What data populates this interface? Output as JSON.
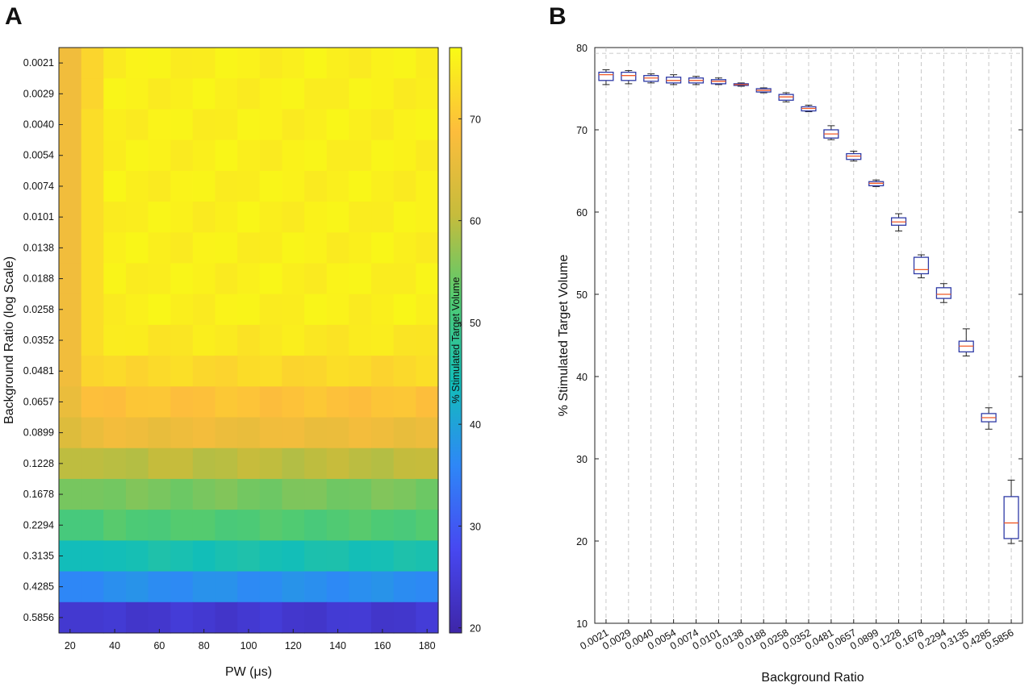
{
  "chart_data": [
    {
      "panel": "A",
      "type": "heatmap",
      "xlabel": "PW (μs)",
      "ylabel": "Background Ratio (log Scale)",
      "colorbar_label": "% Stimulated Target Volume",
      "x": [
        20,
        30,
        40,
        50,
        60,
        70,
        80,
        90,
        100,
        110,
        120,
        130,
        140,
        150,
        160,
        170,
        180
      ],
      "x_ticks": [
        "20",
        "40",
        "60",
        "80",
        "100",
        "120",
        "140",
        "160",
        "180"
      ],
      "x_range": [
        15,
        185
      ],
      "y_categories": [
        "0.0021",
        "0.0029",
        "0.0040",
        "0.0054",
        "0.0074",
        "0.0101",
        "0.0138",
        "0.0188",
        "0.0258",
        "0.0352",
        "0.0481",
        "0.0657",
        "0.0899",
        "0.1228",
        "0.1678",
        "0.2294",
        "0.3135",
        "0.4285",
        "0.5856"
      ],
      "row_base": [
        75.5,
        75.5,
        75.5,
        75.5,
        75.5,
        75.5,
        75.5,
        75.5,
        75.5,
        74.5,
        72.5,
        69.5,
        66.5,
        60.0,
        55.0,
        52.0,
        45.0,
        37.0,
        24.0
      ],
      "first_column": [
        67,
        67,
        67,
        67,
        67,
        67,
        67,
        67,
        67,
        67,
        67,
        66,
        64,
        60,
        55,
        51,
        44,
        36,
        24
      ],
      "second_column": [
        72,
        72,
        73,
        73,
        73,
        73,
        73,
        73,
        73,
        73,
        72,
        69,
        66,
        60,
        55,
        51,
        44,
        36,
        24
      ],
      "colorbar": {
        "ticks": [
          "20",
          "30",
          "40",
          "50",
          "60",
          "70"
        ],
        "min": 19.5,
        "max": 77,
        "colors": [
          "#3e26a8",
          "#4748f1",
          "#2e87f7",
          "#12beb9",
          "#52cb70",
          "#c6bc3c",
          "#fdbd3c",
          "#f9fb15"
        ]
      }
    },
    {
      "panel": "B",
      "type": "box",
      "xlabel": "Background Ratio",
      "ylabel": "% Stimulated Target Volume",
      "ylim": [
        10,
        80
      ],
      "y_ticks": [
        "10",
        "20",
        "30",
        "40",
        "50",
        "60",
        "70",
        "80"
      ],
      "categories": [
        "0.0021",
        "0.0029",
        "0.0040",
        "0.0054",
        "0.0074",
        "0.0101",
        "0.0138",
        "0.0188",
        "0.0258",
        "0.0352",
        "0.0481",
        "0.0657",
        "0.0899",
        "0.1228",
        "0.1678",
        "0.2294",
        "0.3135",
        "0.4285",
        "0.5856"
      ],
      "boxes": [
        {
          "min": 75.5,
          "q1": 76.0,
          "median": 76.7,
          "q3": 77.0,
          "max": 77.3
        },
        {
          "min": 75.6,
          "q1": 76.0,
          "median": 76.6,
          "q3": 77.0,
          "max": 77.2
        },
        {
          "min": 75.7,
          "q1": 75.9,
          "median": 76.3,
          "q3": 76.6,
          "max": 76.8
        },
        {
          "min": 75.5,
          "q1": 75.7,
          "median": 76.0,
          "q3": 76.4,
          "max": 76.7
        },
        {
          "min": 75.5,
          "q1": 75.7,
          "median": 76.0,
          "q3": 76.3,
          "max": 76.5
        },
        {
          "min": 75.5,
          "q1": 75.6,
          "median": 75.9,
          "q3": 76.1,
          "max": 76.3
        },
        {
          "min": 75.3,
          "q1": 75.4,
          "median": 75.5,
          "q3": 75.6,
          "max": 75.7
        },
        {
          "min": 74.5,
          "q1": 74.6,
          "median": 74.8,
          "q3": 75.0,
          "max": 75.1
        },
        {
          "min": 73.4,
          "q1": 73.6,
          "median": 74.0,
          "q3": 74.3,
          "max": 74.5
        },
        {
          "min": 72.2,
          "q1": 72.3,
          "median": 72.6,
          "q3": 72.8,
          "max": 73.0
        },
        {
          "min": 68.8,
          "q1": 69.0,
          "median": 69.5,
          "q3": 70.0,
          "max": 70.5
        },
        {
          "min": 66.2,
          "q1": 66.4,
          "median": 66.8,
          "q3": 67.1,
          "max": 67.4
        },
        {
          "min": 63.1,
          "q1": 63.2,
          "median": 63.5,
          "q3": 63.7,
          "max": 63.9
        },
        {
          "min": 57.7,
          "q1": 58.4,
          "median": 58.8,
          "q3": 59.3,
          "max": 59.8
        },
        {
          "min": 52.0,
          "q1": 52.5,
          "median": 53.0,
          "q3": 54.5,
          "max": 54.8
        },
        {
          "min": 49.0,
          "q1": 49.5,
          "median": 50.0,
          "q3": 50.8,
          "max": 51.3
        },
        {
          "min": 42.5,
          "q1": 43.0,
          "median": 43.7,
          "q3": 44.3,
          "max": 45.8
        },
        {
          "min": 33.6,
          "q1": 34.5,
          "median": 35.0,
          "q3": 35.5,
          "max": 36.2
        },
        {
          "min": 19.7,
          "q1": 20.3,
          "median": 22.2,
          "q3": 25.4,
          "max": 27.4
        }
      ],
      "colors": {
        "box": "#2e3aa6",
        "median": "#f05a28",
        "whisker": "#222222",
        "grid": "#bbbbbb"
      }
    }
  ]
}
